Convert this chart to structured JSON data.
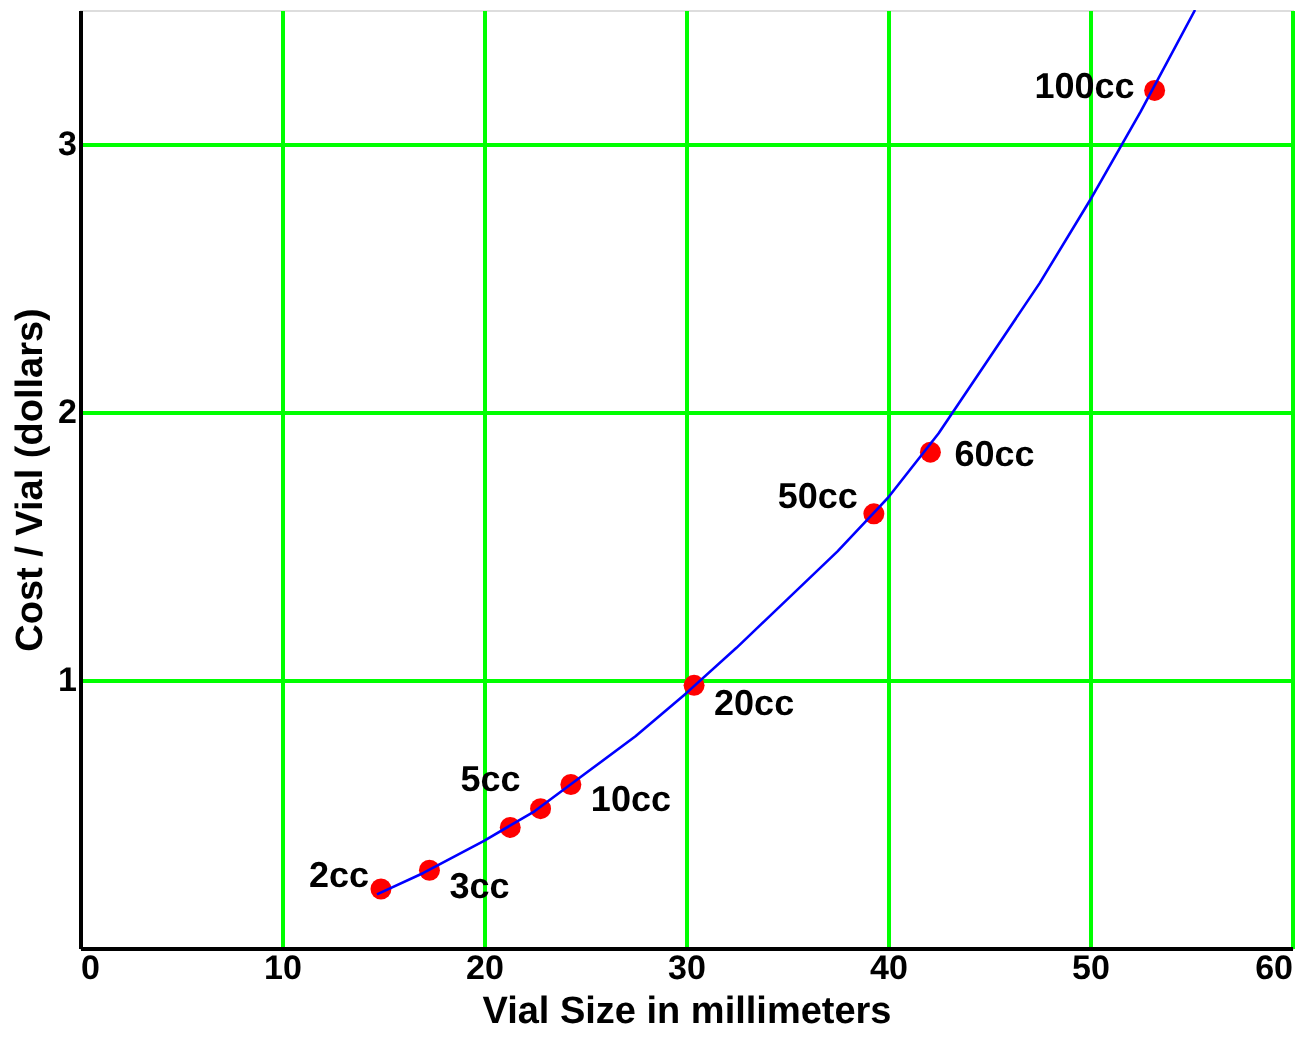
{
  "chart_data": {
    "type": "scatter",
    "xlabel": "Vial Size in millimeters",
    "ylabel": "Cost / Vial (dollars)",
    "series": [
      {
        "marker": "circle",
        "color": "#ff0000",
        "x": [
          14.9,
          17.3,
          21.3,
          22.8,
          24.3,
          30.4,
          39.3,
          42.1,
          53.2
        ],
        "values": [
          0.22,
          0.29,
          0.45,
          0.52,
          0.61,
          0.98,
          1.62,
          1.85,
          3.2
        ]
      },
      {
        "type": "line",
        "marker": "none",
        "color": "#0000ff",
        "x": [
          14.7,
          17,
          20,
          22.5,
          25,
          27.5,
          30,
          32.5,
          35,
          37.5,
          40,
          42.5,
          45,
          47.5,
          50,
          52.5,
          55.2
        ],
        "values": [
          0.2,
          0.28,
          0.4,
          0.51,
          0.65,
          0.79,
          0.95,
          1.12,
          1.3,
          1.48,
          1.68,
          1.92,
          2.2,
          2.48,
          2.79,
          3.12,
          3.5
        ]
      }
    ],
    "annotations": [
      {
        "text": "2cc",
        "x": 14.9,
        "y": 0.22
      },
      {
        "text": "3cc",
        "x": 17.3,
        "y": 0.29
      },
      {
        "text": "5cc",
        "x": 22.8,
        "y": 0.52
      },
      {
        "text": "10cc",
        "x": 24.3,
        "y": 0.61
      },
      {
        "text": "20cc",
        "x": 30.4,
        "y": 0.98
      },
      {
        "text": "50cc",
        "x": 39.3,
        "y": 1.62
      },
      {
        "text": "60cc",
        "x": 42.1,
        "y": 1.85
      },
      {
        "text": "100cc",
        "x": 53.2,
        "y": 3.2
      }
    ],
    "xlim": [
      0,
      60
    ],
    "xticks": [
      0,
      10,
      20,
      30,
      40,
      50,
      60
    ],
    "ylim": [
      0,
      3.5
    ],
    "yticks": [
      {
        "value": 0,
        "label": null
      },
      1,
      2,
      3
    ],
    "grid": true,
    "line_style": "solid"
  }
}
